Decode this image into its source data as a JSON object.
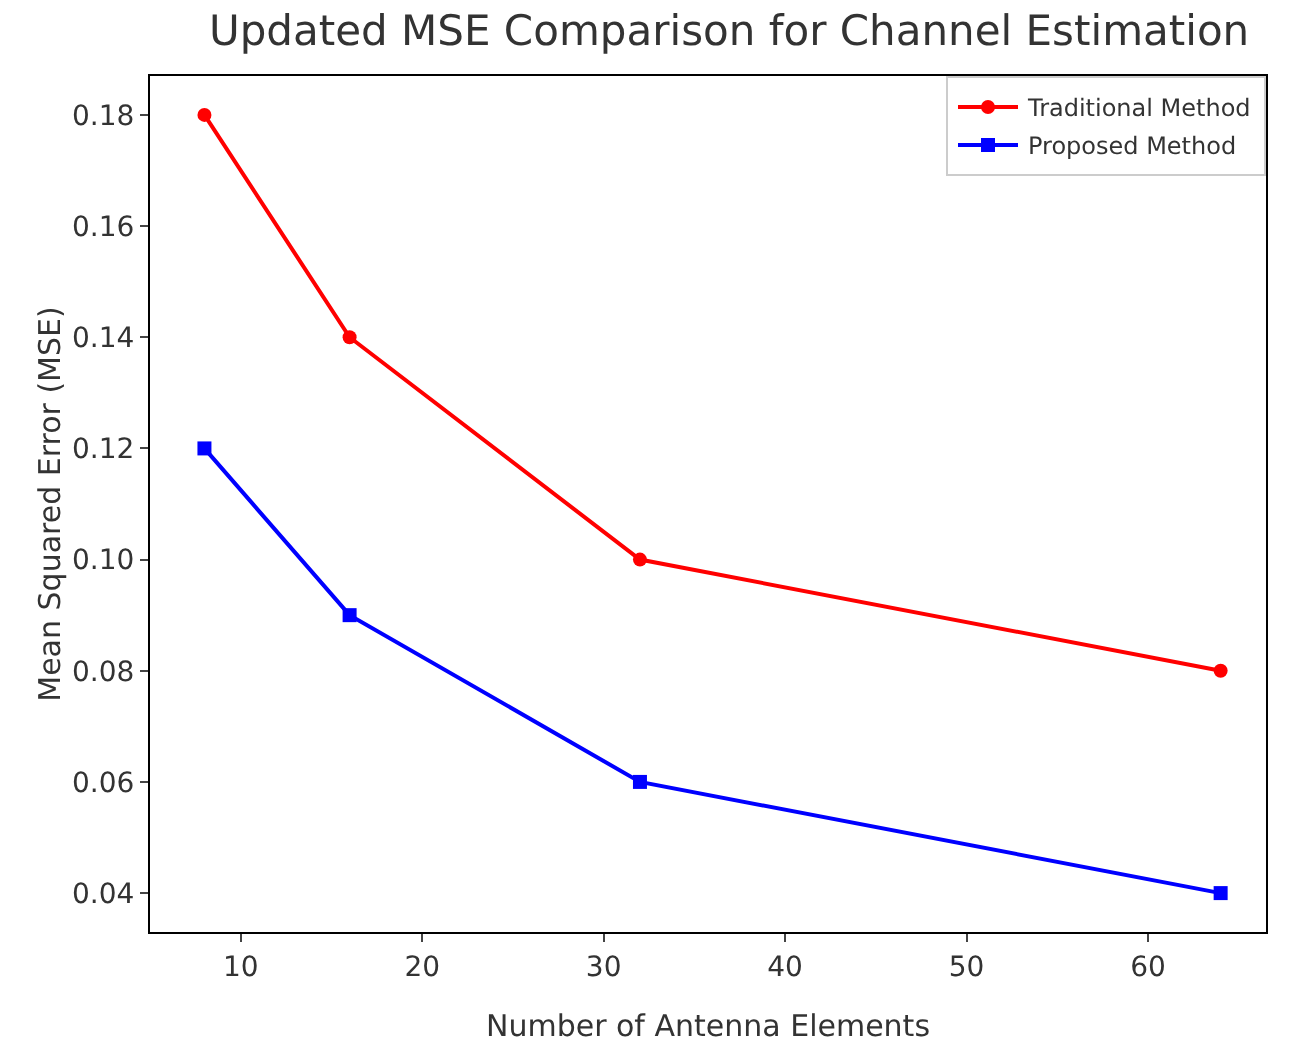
{
  "chart_data": {
    "type": "line",
    "title": "Updated MSE Comparison for Channel Estimation",
    "xlabel": "Number of Antenna Elements",
    "ylabel": "Mean Squared Error (MSE)",
    "x": [
      8,
      16,
      32,
      64
    ],
    "series": [
      {
        "name": "Traditional Method",
        "color": "#ff0000",
        "marker": "circle",
        "values": [
          0.18,
          0.14,
          0.1,
          0.08
        ]
      },
      {
        "name": "Proposed Method",
        "color": "#0000ff",
        "marker": "square",
        "values": [
          0.12,
          0.09,
          0.06,
          0.04
        ]
      }
    ],
    "xlim": [
      5,
      66.5
    ],
    "xticks": [
      10,
      20,
      30,
      40,
      50,
      60
    ],
    "ylim": [
      0.033,
      0.187
    ],
    "yticks": [
      0.04,
      0.06,
      0.08,
      {
        "value": 0.1,
        "label": "0.10"
      },
      0.12,
      0.14,
      0.16,
      0.18
    ],
    "grid": false,
    "legend": "top right",
    "line_style": "solid"
  }
}
